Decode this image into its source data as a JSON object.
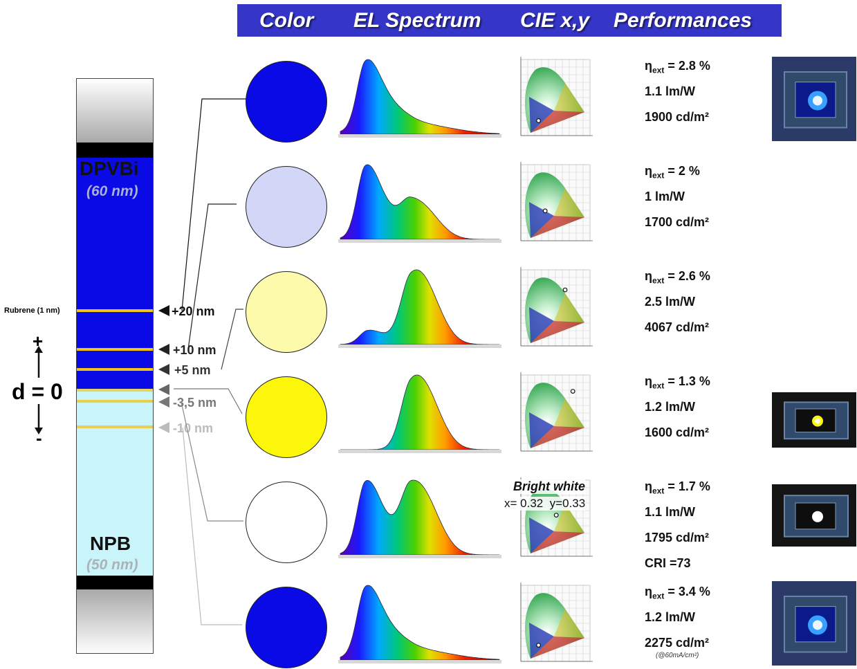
{
  "header": {
    "columns": [
      "Color",
      "EL Spectrum",
      "CIE x,y",
      "Performances"
    ],
    "color": "#3535c8"
  },
  "stack": {
    "top_layer": {
      "name": "DPVBi",
      "thickness": "(60 nm)",
      "color": "#0a0ae6"
    },
    "bottom_layer": {
      "name": "NPB",
      "thickness": "(50 nm)",
      "color": "#c8f4fa"
    },
    "dopant_label": "Rubrene (1 nm)",
    "dopant_color": "#f2c417"
  },
  "axis": {
    "d_label": "d = 0",
    "plus": "+",
    "minus": "-"
  },
  "positions": [
    "+20 nm",
    "+10 nm",
    "+5 nm",
    "-3,5 nm",
    "-10 nm"
  ],
  "devices": [
    {
      "color_hex": "#0a0ae6",
      "metrics": [
        "= 2.8 %",
        "1.1 lm/W",
        "1900 cd/m²"
      ],
      "spectrum": {
        "peaks": [
          [
            455,
            1.0
          ]
        ],
        "decay": 0.18
      },
      "cie_point": [
        0.16,
        0.12
      ],
      "photo": "blue-device-photo"
    },
    {
      "color_hex": "#d2d7f7",
      "metrics": [
        "= 2 %",
        "1 lm/W",
        "1700 cd/m²"
      ],
      "spectrum": {
        "peaks": [
          [
            455,
            1.0
          ],
          [
            555,
            0.42
          ]
        ]
      },
      "cie_point": [
        0.22,
        0.24
      ]
    },
    {
      "color_hex": "#fdfbab",
      "metrics": [
        "= 2.6 %",
        "2.5 lm/W",
        "4067 cd/m²"
      ],
      "spectrum": {
        "peaks": [
          [
            460,
            0.22
          ],
          [
            555,
            1.0
          ]
        ]
      },
      "cie_point": [
        0.4,
        0.45
      ]
    },
    {
      "color_hex": "#fbf60a",
      "metrics": [
        "= 1.3 %",
        "1.2 lm/W",
        "1600 cd/m²"
      ],
      "spectrum": {
        "peaks": [
          [
            555,
            1.0
          ]
        ]
      },
      "cie_point": [
        0.47,
        0.48
      ],
      "photo": "yellow-device-photo"
    },
    {
      "color_hex": "#ffffff",
      "metrics": [
        "= 1.7 %",
        "1.1 lm/W",
        "1795 cd/m²",
        "CRI =73"
      ],
      "annotation": {
        "title": "Bright white",
        "coords": "x= 0.32  y=0.33"
      },
      "spectrum": {
        "peaks": [
          [
            455,
            1.0
          ],
          [
            555,
            0.82
          ]
        ]
      },
      "cie_point": [
        0.32,
        0.33
      ],
      "photo": "white-device-photo"
    },
    {
      "color_hex": "#0a0ae6",
      "metrics": [
        "= 3.4 %",
        "1.2 lm/W",
        "2275 cd/m²"
      ],
      "note": "(@60mA/cm²)",
      "spectrum": {
        "peaks": [
          [
            455,
            1.0
          ]
        ],
        "decay": 0.18
      },
      "cie_point": [
        0.16,
        0.13
      ],
      "photo": "blue-device-photo"
    }
  ],
  "eta_symbol": "η",
  "eta_sub": "ext"
}
